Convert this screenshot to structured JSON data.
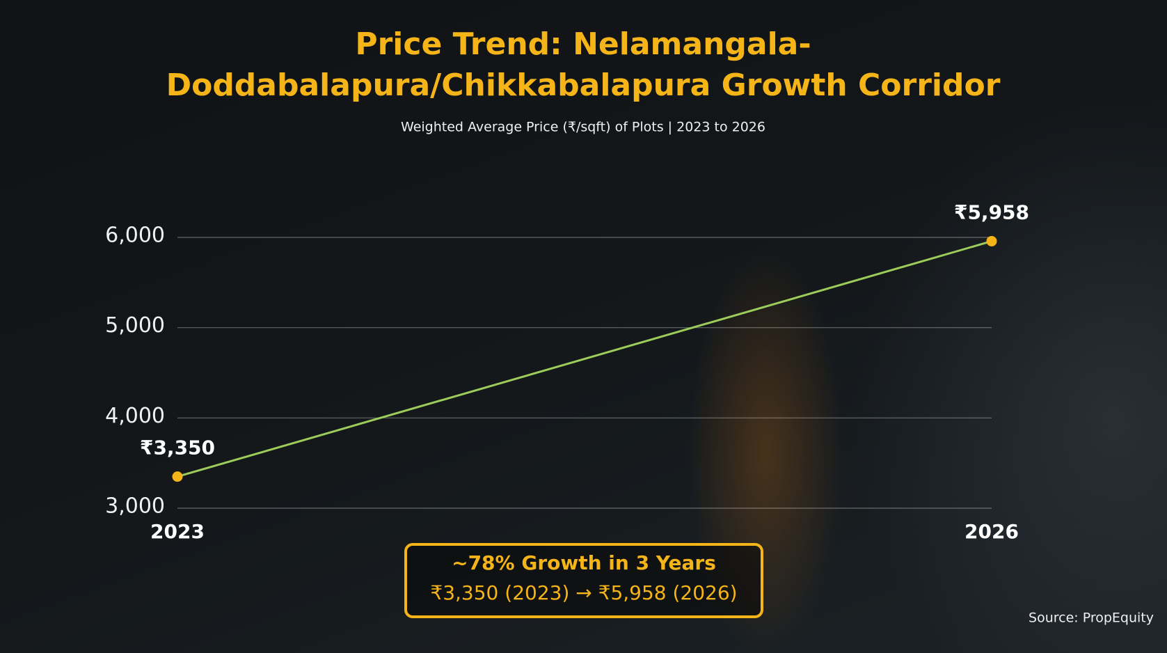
{
  "chart_data": {
    "type": "line",
    "title": [
      "Price Trend: Nelamangala-",
      "Doddabalapura/Chikkabalapura Growth Corridor"
    ],
    "subtitle": "Weighted Average Price (₹/sqft) of Plots | 2023 to 2026",
    "x": [
      2023,
      2026
    ],
    "xlim": [
      2023,
      2026
    ],
    "xticks": [
      2023,
      2026
    ],
    "ylim": [
      3000,
      6000
    ],
    "yticks": [
      {
        "value": 3000,
        "label": "3,000"
      },
      {
        "value": 4000,
        "label": "4,000"
      },
      {
        "value": 5000,
        "label": "5,000"
      },
      {
        "value": 6000,
        "label": "6,000"
      }
    ],
    "grid": true,
    "series": [
      {
        "color": "#9ccc5a",
        "marker_color": "#f5b417",
        "values": [
          3350,
          5958
        ],
        "value_labels": [
          "₹3,350",
          "₹5,958"
        ]
      }
    ],
    "annotation": [
      "~78% Growth in 3 Years",
      "₹3,350 (2023) → ₹5,958 (2026)"
    ],
    "source": "Source: PropEquity"
  }
}
